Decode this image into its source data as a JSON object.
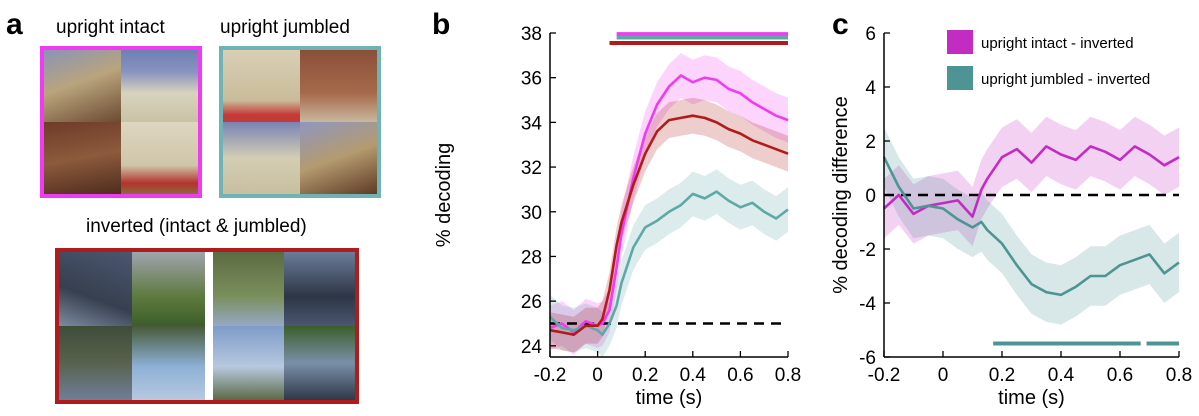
{
  "panels": {
    "a": {
      "letter": "a",
      "captions": {
        "upright_intact": "upright intact",
        "upright_jumbled": "upright jumbled",
        "inverted": "inverted (intact & jumbled)"
      },
      "frame_colors": {
        "upright_intact": "#f03cf0",
        "upright_jumbled": "#6fb3b3",
        "inverted": "#b01c1c"
      }
    },
    "b": {
      "letter": "b"
    },
    "c": {
      "letter": "c"
    }
  },
  "chart_data": [
    {
      "id": "b",
      "type": "line",
      "title": "",
      "xlabel": "time (s)",
      "ylabel": "% decoding",
      "xlim": [
        -0.2,
        0.8
      ],
      "ylim": [
        23.5,
        38
      ],
      "xticks": [
        -0.2,
        0,
        0.2,
        0.4,
        0.6,
        0.8
      ],
      "xtick_labels": [
        "-0.2",
        "0",
        "0.2",
        "0.4",
        "0.6",
        "0.8"
      ],
      "yticks": [
        24,
        26,
        28,
        30,
        32,
        34,
        36,
        38
      ],
      "ytick_labels": [
        "24",
        "26",
        "28",
        "30",
        "32",
        "34",
        "36",
        "38"
      ],
      "reference_line": {
        "y": 25,
        "style": "dashed"
      },
      "x": [
        -0.2,
        -0.15,
        -0.1,
        -0.05,
        0,
        0.02,
        0.05,
        0.08,
        0.1,
        0.15,
        0.2,
        0.25,
        0.3,
        0.35,
        0.4,
        0.45,
        0.5,
        0.55,
        0.6,
        0.65,
        0.7,
        0.75,
        0.8
      ],
      "series": [
        {
          "key": "upright_intact",
          "color": "#f03cf0",
          "band": 1.0,
          "values": [
            24.8,
            25.0,
            24.6,
            25.1,
            24.9,
            25.0,
            25.6,
            27.5,
            29.0,
            31.5,
            33.5,
            34.8,
            35.6,
            36.1,
            35.8,
            36.0,
            35.9,
            35.5,
            35.3,
            34.9,
            34.6,
            34.3,
            34.1
          ]
        },
        {
          "key": "upright_jumbled",
          "color": "#5fa8a8",
          "band": 1.0,
          "values": [
            25.3,
            24.8,
            24.7,
            24.9,
            24.7,
            24.5,
            25.0,
            25.8,
            26.8,
            28.4,
            29.3,
            29.6,
            30.0,
            30.3,
            30.8,
            30.6,
            30.9,
            30.5,
            30.2,
            30.4,
            30.0,
            29.7,
            30.1
          ]
        },
        {
          "key": "inverted",
          "color": "#b01c1c",
          "band": 0.8,
          "values": [
            24.7,
            24.6,
            24.5,
            24.9,
            24.9,
            25.2,
            26.5,
            28.5,
            29.5,
            31.2,
            32.6,
            33.6,
            34.1,
            34.2,
            34.3,
            34.2,
            34.0,
            33.7,
            33.5,
            33.2,
            33.0,
            32.8,
            32.6
          ]
        }
      ],
      "significance_bars": [
        {
          "color": "#f03cf0",
          "y": 37.95,
          "x0": 0.08,
          "x1": 0.8
        },
        {
          "color": "#5fa8a8",
          "y": 37.8,
          "x0": 0.08,
          "x1": 0.8
        },
        {
          "color": "#b01c1c",
          "y": 37.55,
          "x0": 0.05,
          "x1": 0.8
        }
      ]
    },
    {
      "id": "c",
      "type": "line",
      "title": "",
      "xlabel": "time (s)",
      "ylabel": "% decoding difference",
      "xlim": [
        -0.2,
        0.8
      ],
      "ylim": [
        -6,
        6
      ],
      "xticks": [
        -0.2,
        0,
        0.2,
        0.4,
        0.6,
        0.8
      ],
      "xtick_labels": [
        "-0.2",
        "0",
        "0.2",
        "0.4",
        "0.6",
        "0.8"
      ],
      "yticks": [
        -6,
        -4,
        -2,
        0,
        2,
        4,
        6
      ],
      "ytick_labels": [
        "-6",
        "-4",
        "-2",
        "0",
        "2",
        "4",
        "6"
      ],
      "reference_line": {
        "y": 0,
        "style": "dashed"
      },
      "legend_position": "top-right",
      "legend": [
        {
          "label": "upright intact - inverted",
          "color": "#c22cc2"
        },
        {
          "label": "upright jumbled - inverted",
          "color": "#4f9494"
        }
      ],
      "x": [
        -0.2,
        -0.15,
        -0.1,
        -0.05,
        0,
        0.05,
        0.1,
        0.13,
        0.15,
        0.2,
        0.25,
        0.3,
        0.35,
        0.4,
        0.45,
        0.5,
        0.55,
        0.6,
        0.65,
        0.7,
        0.75,
        0.8
      ],
      "series": [
        {
          "name": "upright intact - inverted",
          "color": "#c22cc2",
          "band": 1.1,
          "values": [
            -0.5,
            0.0,
            -0.7,
            -0.4,
            -0.3,
            -0.2,
            -0.8,
            0.2,
            0.6,
            1.4,
            1.7,
            1.2,
            1.8,
            1.5,
            1.3,
            1.8,
            1.6,
            1.3,
            1.8,
            1.5,
            1.1,
            1.4
          ]
        },
        {
          "name": "upright jumbled - inverted",
          "color": "#4f9494",
          "band": 1.1,
          "values": [
            1.4,
            0.3,
            -0.5,
            -0.4,
            -0.5,
            -0.9,
            -1.2,
            -1.0,
            -1.3,
            -1.8,
            -2.6,
            -3.3,
            -3.6,
            -3.7,
            -3.4,
            -3.0,
            -3.0,
            -2.6,
            -2.4,
            -2.2,
            -2.9,
            -2.5
          ]
        }
      ],
      "significance_bars": [
        {
          "color": "#4f9494",
          "y": -5.5,
          "x0": 0.17,
          "x1": 0.67
        },
        {
          "color": "#4f9494",
          "y": -5.5,
          "x0": 0.69,
          "x1": 0.8
        }
      ]
    }
  ]
}
